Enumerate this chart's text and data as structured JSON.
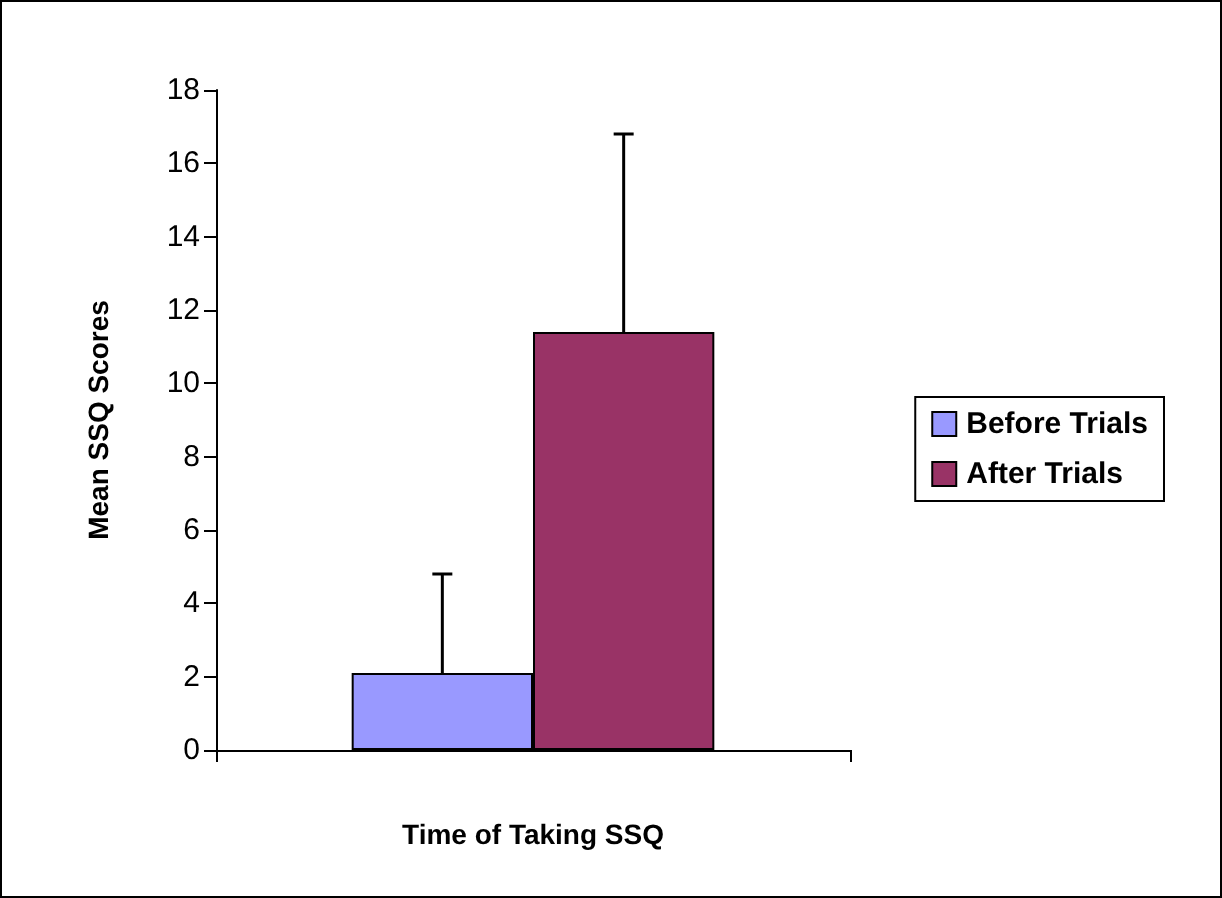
{
  "chart_data": {
    "type": "bar",
    "xlabel": "Time of Taking SSQ",
    "ylabel": "Mean SSQ Scores",
    "categories": [
      null
    ],
    "series": [
      {
        "name": "Before Trials",
        "color": "#9999ff",
        "values": [
          2.1
        ],
        "errors": [
          [
            2.1,
            4.8
          ]
        ]
      },
      {
        "name": "After Trials",
        "color": "#993366",
        "values": [
          11.4
        ],
        "errors": [
          [
            11.4,
            16.8
          ]
        ]
      }
    ],
    "ylim": [
      0,
      18
    ],
    "yticks": [
      0,
      2,
      4,
      6,
      8,
      10,
      12,
      14,
      16,
      18
    ],
    "grid": false,
    "legend": "right"
  }
}
